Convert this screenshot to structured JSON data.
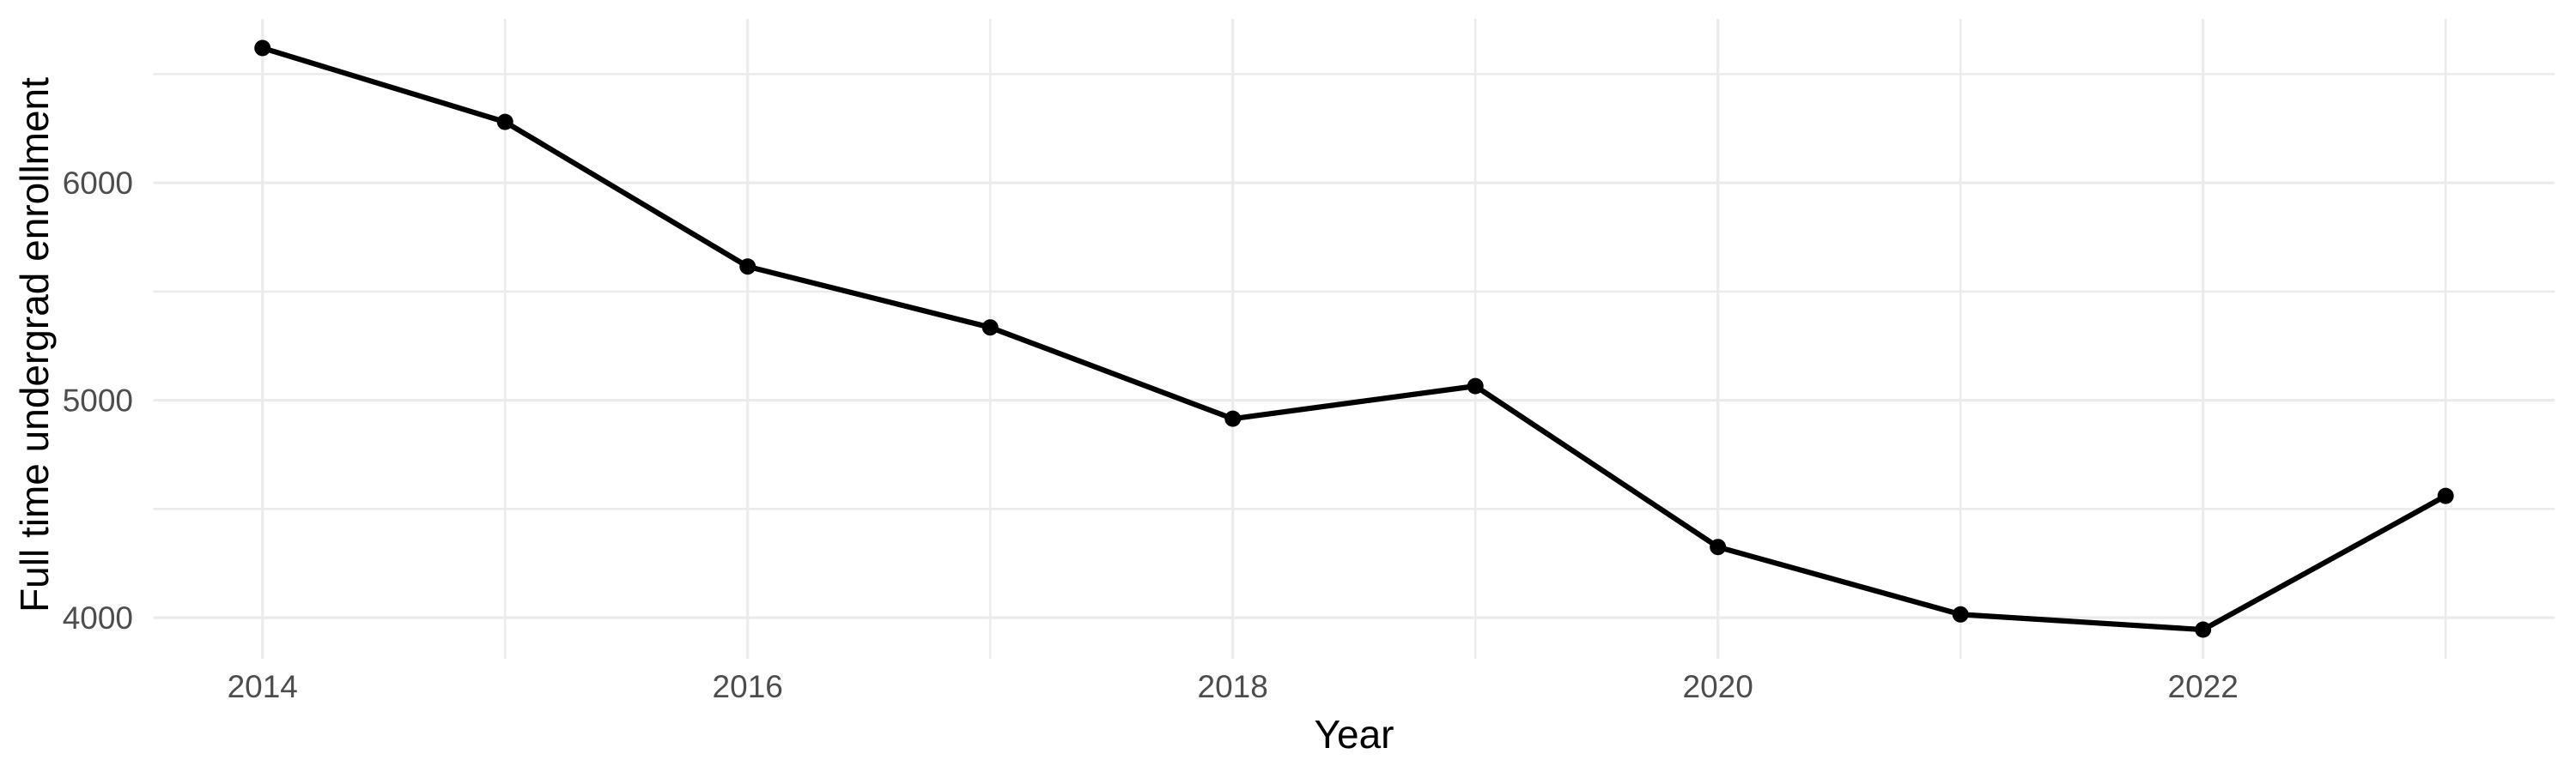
{
  "chart_data": {
    "type": "line",
    "x": [
      2014,
      2015,
      2016,
      2017,
      2018,
      2019,
      2020,
      2021,
      2022,
      2023
    ],
    "values": [
      6620,
      6280,
      5615,
      5335,
      4915,
      5065,
      4325,
      4015,
      3945,
      4560
    ],
    "xlabel": "Year",
    "ylabel": "Full time undergrad enrollment",
    "x_axis": {
      "label": "Year",
      "tick_labels": [
        "2014",
        "2016",
        "2018",
        "2020",
        "2022"
      ],
      "major_gridlines": [
        2014,
        2016,
        2018,
        2020,
        2022
      ],
      "minor_gridlines": [
        2015,
        2017,
        2019,
        2021,
        2023
      ],
      "range": [
        2013.55,
        2023.45
      ]
    },
    "y_axis": {
      "label": "Full time undergrad enrollment",
      "tick_labels": [
        "4000",
        "5000",
        "6000"
      ],
      "major_gridlines": [
        4000,
        5000,
        6000
      ],
      "minor_gridlines": [
        4500,
        5500,
        6500
      ],
      "range": [
        3811,
        6754
      ]
    },
    "grid": true,
    "legend": false
  },
  "style": {
    "background_color": "#ffffff",
    "grid_color": "#ebebeb",
    "line_color": "#000000",
    "point_color": "#000000",
    "tick_label_color": "#4d4d4d",
    "axis_title_color": "#000000"
  }
}
